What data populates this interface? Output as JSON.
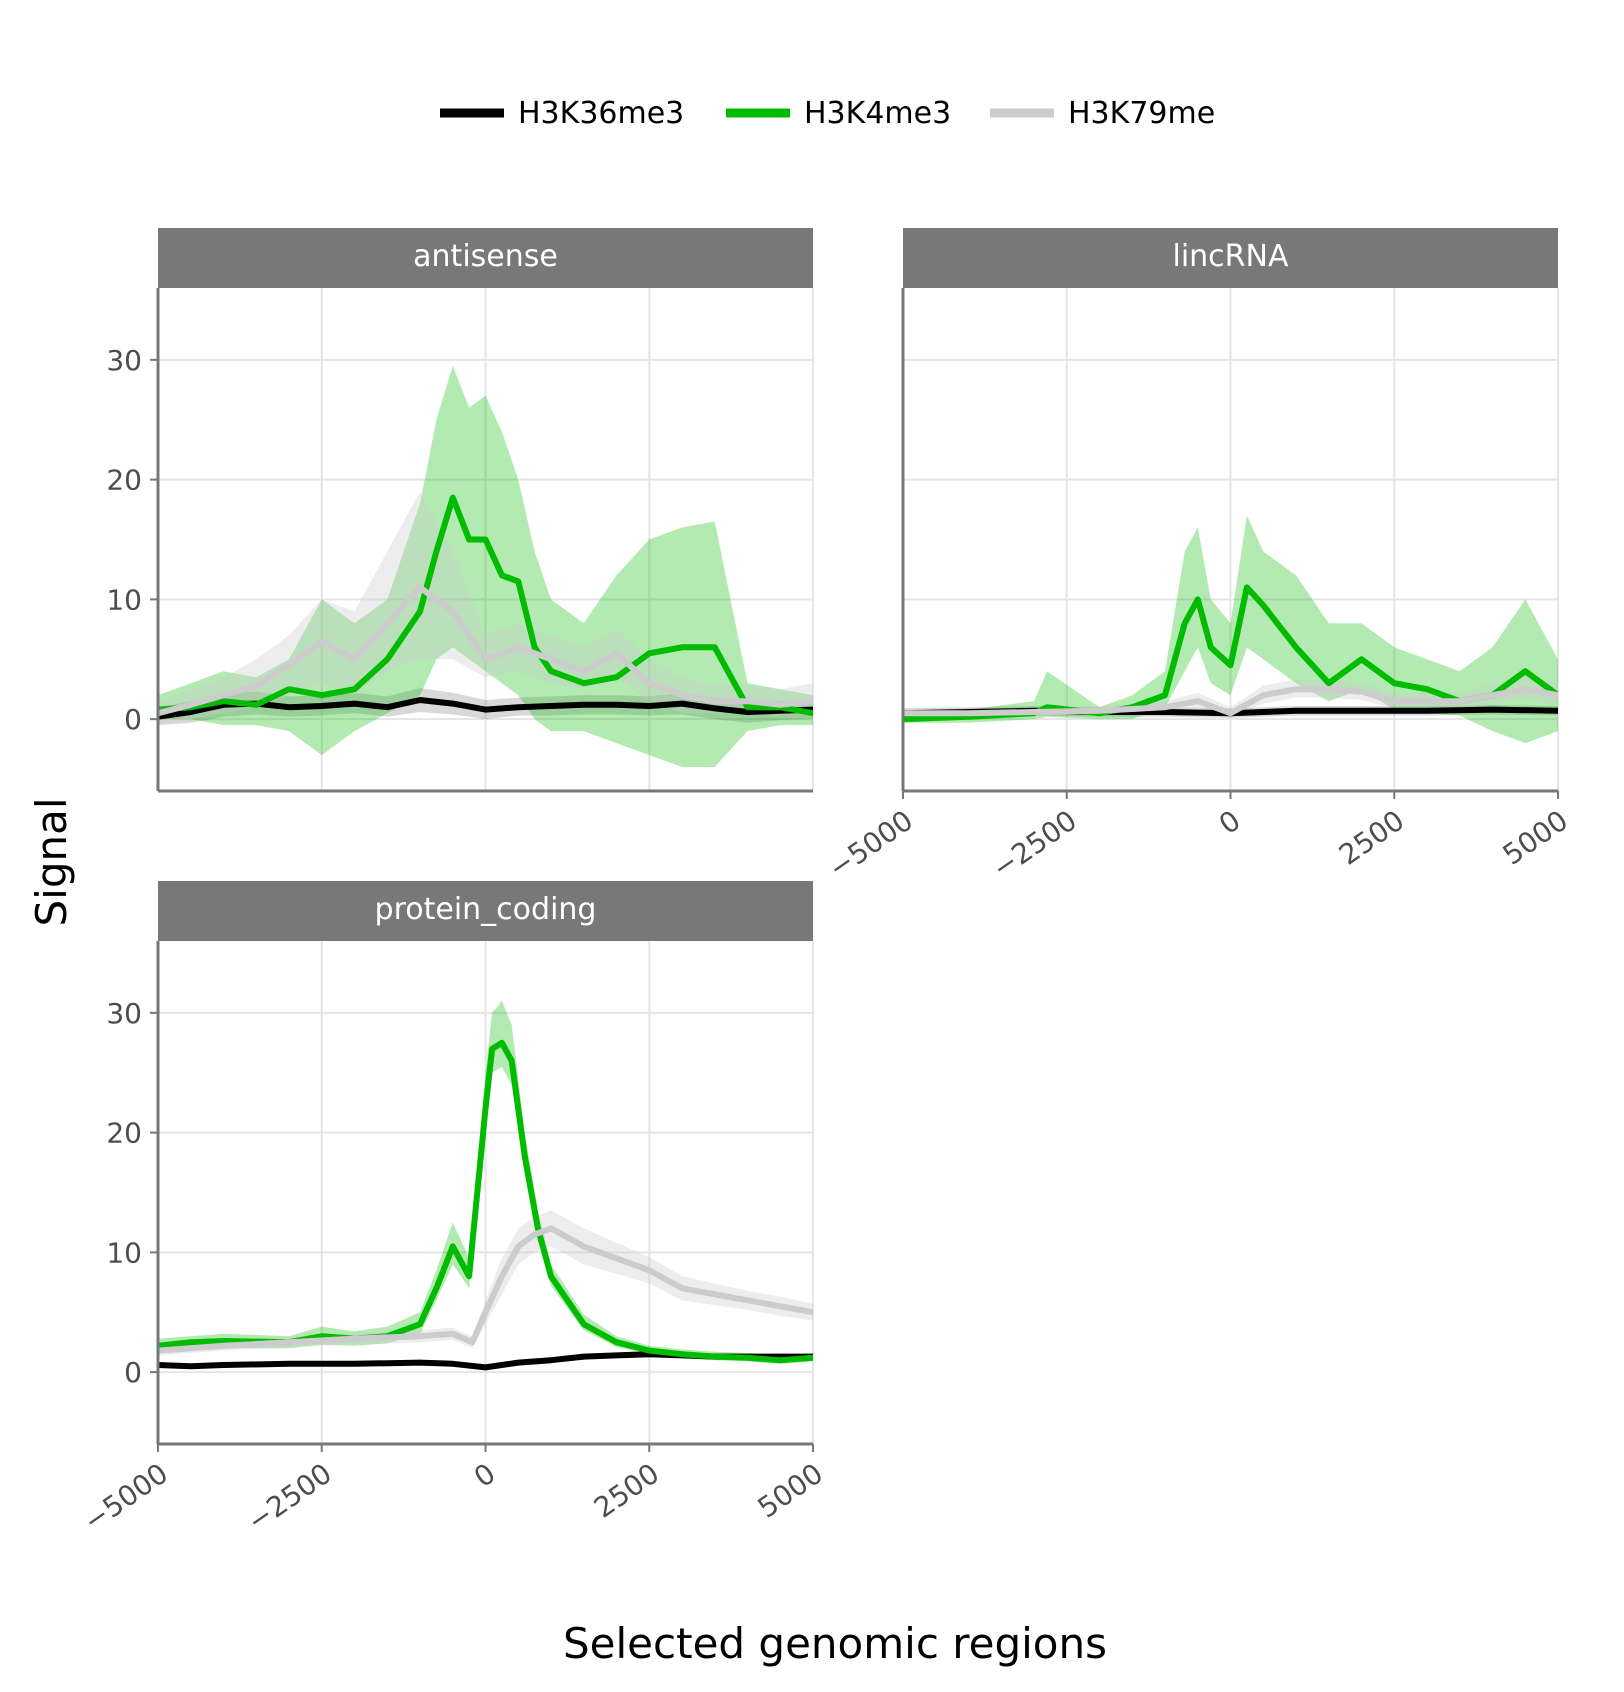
{
  "chart_data": {
    "type": "line",
    "xlabel": "Selected genomic regions",
    "ylabel": "Signal",
    "xlim": [
      -5000,
      5000
    ],
    "ylim": [
      -6,
      36
    ],
    "x_ticks": [
      -5000,
      -2500,
      0,
      2500,
      5000
    ],
    "y_ticks": [
      0,
      10,
      20,
      30
    ],
    "grid": true,
    "legend_position": "top",
    "legend": [
      {
        "name": "H3K36me3",
        "color": "#000000"
      },
      {
        "name": "H3K4me3",
        "color": "#00bb00"
      },
      {
        "name": "H3K79me",
        "color": "#cccccc"
      }
    ],
    "panels": [
      {
        "title": "antisense",
        "series": [
          {
            "name": "H3K36me3",
            "color": "#000000",
            "x": [
              -5000,
              -4500,
              -4000,
              -3500,
              -3000,
              -2500,
              -2000,
              -1500,
              -1000,
              -500,
              0,
              500,
              1000,
              1500,
              2000,
              2500,
              3000,
              3500,
              4000,
              4500,
              5000
            ],
            "y": [
              0.2,
              0.6,
              1.2,
              1.3,
              1.0,
              1.1,
              1.3,
              1.0,
              1.6,
              1.3,
              0.8,
              1.0,
              1.1,
              1.2,
              1.2,
              1.1,
              1.3,
              0.9,
              0.6,
              0.7,
              0.8
            ],
            "lower": [
              -0.5,
              -0.3,
              0.2,
              0.4,
              0.2,
              0.3,
              0.5,
              0.2,
              0.6,
              0.4,
              0.0,
              0.3,
              0.3,
              0.4,
              0.4,
              0.3,
              0.4,
              0.0,
              -0.3,
              -0.1,
              0.0
            ],
            "upper": [
              1.0,
              1.5,
              2.2,
              2.3,
              1.9,
              2.0,
              2.2,
              1.9,
              2.6,
              2.2,
              1.6,
              1.8,
              1.9,
              2.0,
              2.0,
              1.9,
              2.2,
              1.8,
              1.5,
              1.5,
              1.6
            ]
          },
          {
            "name": "H3K4me3",
            "color": "#00bb00",
            "x": [
              -5000,
              -4500,
              -4000,
              -3500,
              -3000,
              -2500,
              -2000,
              -1500,
              -1000,
              -750,
              -500,
              -250,
              0,
              250,
              500,
              750,
              1000,
              1500,
              2000,
              2500,
              3000,
              3500,
              4000,
              4500,
              5000
            ],
            "y": [
              0.8,
              1.0,
              1.5,
              1.2,
              2.5,
              2.0,
              2.5,
              5.0,
              9.0,
              14.0,
              18.5,
              15.0,
              15.0,
              12.0,
              11.5,
              6.0,
              4.0,
              3.0,
              3.5,
              5.5,
              6.0,
              6.0,
              1.0,
              1.0,
              0.5
            ],
            "lower": [
              0.0,
              0.0,
              -0.5,
              -0.5,
              -1.0,
              -3.0,
              -1.0,
              0.5,
              2.0,
              5.0,
              6.0,
              5.0,
              4.0,
              3.0,
              2.0,
              0.0,
              -1.0,
              -1.0,
              -2.0,
              -3.0,
              -4.0,
              -4.0,
              -1.0,
              -0.5,
              -0.5
            ],
            "upper": [
              2.0,
              3.0,
              4.0,
              3.5,
              5.0,
              10.0,
              8.0,
              10.0,
              18.0,
              25.0,
              29.5,
              26.0,
              27.0,
              24.0,
              20.0,
              14.0,
              10.0,
              8.0,
              12.0,
              15.0,
              16.0,
              16.5,
              3.0,
              2.5,
              2.0
            ]
          },
          {
            "name": "H3K79me",
            "color": "#cccccc",
            "x": [
              -5000,
              -4500,
              -4000,
              -3500,
              -3000,
              -2500,
              -2000,
              -1500,
              -1000,
              -500,
              0,
              500,
              1000,
              1500,
              2000,
              2500,
              3000,
              3500,
              4000,
              4500,
              5000
            ],
            "y": [
              0.5,
              1.2,
              2.0,
              2.8,
              4.5,
              6.5,
              5.0,
              8.0,
              11.0,
              9.0,
              5.0,
              6.0,
              5.0,
              4.0,
              5.5,
              3.0,
              2.0,
              1.5,
              1.5,
              1.2,
              1.5
            ],
            "lower": [
              -0.5,
              0.0,
              0.5,
              1.0,
              2.0,
              3.0,
              2.0,
              4.0,
              5.0,
              5.0,
              3.5,
              4.0,
              3.0,
              2.5,
              3.5,
              1.5,
              0.5,
              0.5,
              0.5,
              0.3,
              0.5
            ],
            "upper": [
              1.5,
              2.5,
              3.5,
              5.0,
              7.0,
              10.0,
              9.0,
              14.0,
              19.0,
              14.0,
              7.0,
              8.0,
              7.0,
              6.0,
              7.5,
              5.0,
              3.5,
              2.8,
              2.8,
              2.5,
              3.0
            ]
          }
        ]
      },
      {
        "title": "lincRNA",
        "series": [
          {
            "name": "H3K36me3",
            "color": "#000000",
            "x": [
              -5000,
              -4000,
              -3000,
              -2000,
              -1000,
              0,
              500,
              1000,
              2000,
              3000,
              4000,
              5000
            ],
            "y": [
              0.5,
              0.6,
              0.7,
              0.6,
              0.6,
              0.5,
              0.6,
              0.7,
              0.7,
              0.7,
              0.8,
              0.7
            ],
            "lower": [
              0.1,
              0.2,
              0.3,
              0.2,
              0.2,
              0.1,
              0.2,
              0.3,
              0.3,
              0.3,
              0.4,
              0.3
            ],
            "upper": [
              0.9,
              1.0,
              1.1,
              1.0,
              1.0,
              0.9,
              1.0,
              1.1,
              1.1,
              1.1,
              1.2,
              1.1
            ]
          },
          {
            "name": "H3K4me3",
            "color": "#00bb00",
            "x": [
              -5000,
              -4000,
              -3000,
              -2800,
              -2000,
              -1500,
              -1000,
              -700,
              -500,
              -300,
              0,
              250,
              500,
              1000,
              1500,
              2000,
              2500,
              3000,
              3500,
              4000,
              4500,
              5000
            ],
            "y": [
              0.0,
              0.2,
              0.5,
              1.0,
              0.5,
              1.0,
              2.0,
              8.0,
              10.0,
              6.0,
              4.5,
              11.0,
              9.5,
              6.0,
              3.0,
              5.0,
              3.0,
              2.5,
              1.5,
              2.0,
              4.0,
              2.0
            ],
            "lower": [
              -0.3,
              -0.3,
              0.0,
              0.2,
              0.0,
              0.0,
              1.0,
              4.0,
              6.0,
              3.0,
              2.0,
              6.0,
              5.0,
              3.0,
              1.5,
              2.5,
              0.8,
              0.5,
              0.3,
              -1.0,
              -2.0,
              -1.0
            ],
            "upper": [
              0.3,
              0.8,
              1.5,
              4.0,
              1.0,
              2.0,
              4.0,
              14.0,
              16.0,
              10.0,
              8.0,
              17.0,
              14.0,
              12.0,
              8.0,
              8.0,
              6.0,
              5.0,
              4.0,
              6.0,
              10.0,
              5.0
            ]
          },
          {
            "name": "H3K79me",
            "color": "#cccccc",
            "x": [
              -5000,
              -4000,
              -3000,
              -2000,
              -1000,
              -500,
              0,
              500,
              1000,
              1500,
              2000,
              2500,
              3000,
              3500,
              4000,
              4500,
              5000
            ],
            "y": [
              0.5,
              0.5,
              0.6,
              0.7,
              1.0,
              1.5,
              0.5,
              2.0,
              2.5,
              2.5,
              2.3,
              1.5,
              1.5,
              1.5,
              2.0,
              2.5,
              2.0
            ],
            "lower": [
              0.2,
              0.2,
              0.3,
              0.4,
              0.6,
              0.9,
              0.1,
              1.3,
              1.8,
              1.8,
              1.6,
              0.9,
              0.9,
              0.9,
              1.2,
              1.6,
              1.2
            ],
            "upper": [
              0.9,
              0.9,
              1.0,
              1.1,
              1.5,
              2.2,
              1.0,
              2.8,
              3.3,
              3.3,
              3.0,
              2.2,
              2.2,
              2.2,
              3.0,
              3.6,
              3.0
            ]
          }
        ]
      },
      {
        "title": "protein_coding",
        "series": [
          {
            "name": "H3K36me3",
            "color": "#000000",
            "x": [
              -5000,
              -4500,
              -4000,
              -3000,
              -2000,
              -1000,
              -500,
              0,
              500,
              1000,
              1500,
              2000,
              2500,
              3000,
              3500,
              4000,
              4500,
              5000
            ],
            "y": [
              0.6,
              0.5,
              0.6,
              0.7,
              0.7,
              0.8,
              0.7,
              0.4,
              0.8,
              1.0,
              1.3,
              1.4,
              1.5,
              1.4,
              1.3,
              1.3,
              1.3,
              1.3
            ],
            "lower": [
              0.4,
              0.3,
              0.4,
              0.5,
              0.5,
              0.6,
              0.5,
              0.2,
              0.6,
              0.8,
              1.1,
              1.2,
              1.3,
              1.2,
              1.1,
              1.1,
              1.1,
              1.1
            ],
            "upper": [
              0.8,
              0.7,
              0.8,
              0.9,
              0.9,
              1.0,
              0.9,
              0.6,
              1.0,
              1.2,
              1.5,
              1.6,
              1.7,
              1.6,
              1.5,
              1.5,
              1.5,
              1.5
            ]
          },
          {
            "name": "H3K4me3",
            "color": "#00bb00",
            "x": [
              -5000,
              -4500,
              -4000,
              -3000,
              -2500,
              -2000,
              -1500,
              -1000,
              -750,
              -500,
              -250,
              0,
              100,
              250,
              400,
              600,
              800,
              1000,
              1500,
              2000,
              2500,
              3000,
              3500,
              4000,
              4500,
              5000
            ],
            "y": [
              2.2,
              2.5,
              2.6,
              2.5,
              3.0,
              2.8,
              3.0,
              4.0,
              7.0,
              10.5,
              8.0,
              22.0,
              27.0,
              27.5,
              26.0,
              18.0,
              12.0,
              8.0,
              4.0,
              2.5,
              1.8,
              1.5,
              1.3,
              1.2,
              1.0,
              1.2
            ],
            "lower": [
              1.8,
              2.0,
              2.0,
              2.0,
              2.3,
              2.2,
              2.4,
              3.2,
              6.0,
              9.0,
              7.0,
              20.0,
              25.0,
              25.5,
              24.0,
              16.5,
              11.0,
              7.2,
              3.5,
              2.1,
              1.5,
              1.2,
              1.0,
              0.9,
              0.7,
              0.9
            ],
            "upper": [
              2.8,
              3.0,
              3.2,
              3.0,
              3.8,
              3.4,
              3.8,
              5.0,
              8.5,
              12.5,
              9.5,
              25.0,
              30.0,
              31.0,
              29.0,
              20.0,
              13.5,
              9.0,
              4.8,
              3.0,
              2.2,
              1.9,
              1.7,
              1.6,
              1.4,
              1.6
            ]
          },
          {
            "name": "H3K79me",
            "color": "#cccccc",
            "x": [
              -5000,
              -4500,
              -4000,
              -3000,
              -2000,
              -1000,
              -500,
              -200,
              0,
              250,
              500,
              750,
              1000,
              1500,
              2000,
              2500,
              3000,
              3500,
              4000,
              4500,
              5000
            ],
            "y": [
              1.8,
              2.0,
              2.2,
              2.5,
              2.8,
              3.0,
              3.2,
              2.5,
              5.0,
              8.0,
              10.5,
              11.5,
              12.0,
              10.5,
              9.5,
              8.5,
              7.0,
              6.5,
              6.0,
              5.5,
              5.0
            ],
            "lower": [
              1.4,
              1.6,
              1.8,
              2.1,
              2.3,
              2.5,
              2.7,
              2.0,
              4.0,
              6.5,
              9.0,
              10.0,
              10.5,
              9.0,
              8.2,
              7.4,
              6.0,
              5.6,
              5.2,
              4.7,
              4.3
            ],
            "upper": [
              2.2,
              2.4,
              2.6,
              2.9,
              3.3,
              3.5,
              3.7,
              3.0,
              6.0,
              9.5,
              12.0,
              13.0,
              13.5,
              12.0,
              10.8,
              9.6,
              8.0,
              7.4,
              6.8,
              6.3,
              5.7
            ]
          }
        ]
      }
    ]
  }
}
